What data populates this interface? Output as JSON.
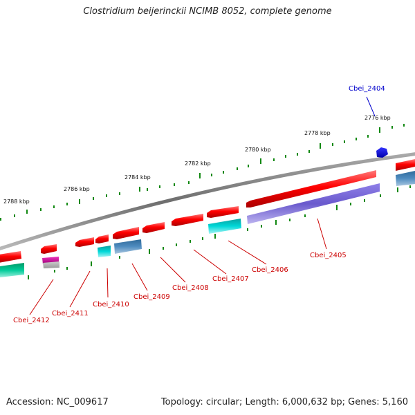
{
  "title": "Clostridium beijerinckii NCIMB 8052, complete genome",
  "footer": {
    "accession": "Accession: NC_009617",
    "summary": "Topology: circular; Length: 6,000,632 bp; Genes: 5,160"
  },
  "kbp_labels": [
    "2776 kbp",
    "2778 kbp",
    "2780 kbp",
    "2782 kbp",
    "2784 kbp",
    "2786 kbp",
    "2788 kbp"
  ],
  "genes": [
    {
      "name": "Cbei_2404",
      "color": "#0000cc"
    },
    {
      "name": "Cbei_2405",
      "color": "#cc0000"
    },
    {
      "name": "Cbei_2406",
      "color": "#cc0000"
    },
    {
      "name": "Cbei_2407",
      "color": "#cc0000"
    },
    {
      "name": "Cbei_2408",
      "color": "#cc0000"
    },
    {
      "name": "Cbei_2409",
      "color": "#cc0000"
    },
    {
      "name": "Cbei_2410",
      "color": "#cc0000"
    },
    {
      "name": "Cbei_2411",
      "color": "#cc0000"
    },
    {
      "name": "Cbei_2412",
      "color": "#cc0000"
    }
  ],
  "colors": {
    "backbone": "#7a7a7a",
    "tick": "#118811",
    "gene_red": "#ff0000",
    "gene_blue": "#0000ee",
    "gene_cyan": "#00cccc",
    "gene_purple": "#6a5acd",
    "gene_steel": "#4682b4",
    "gene_teal": "#00bb88",
    "gene_magenta": "#cc0099"
  }
}
